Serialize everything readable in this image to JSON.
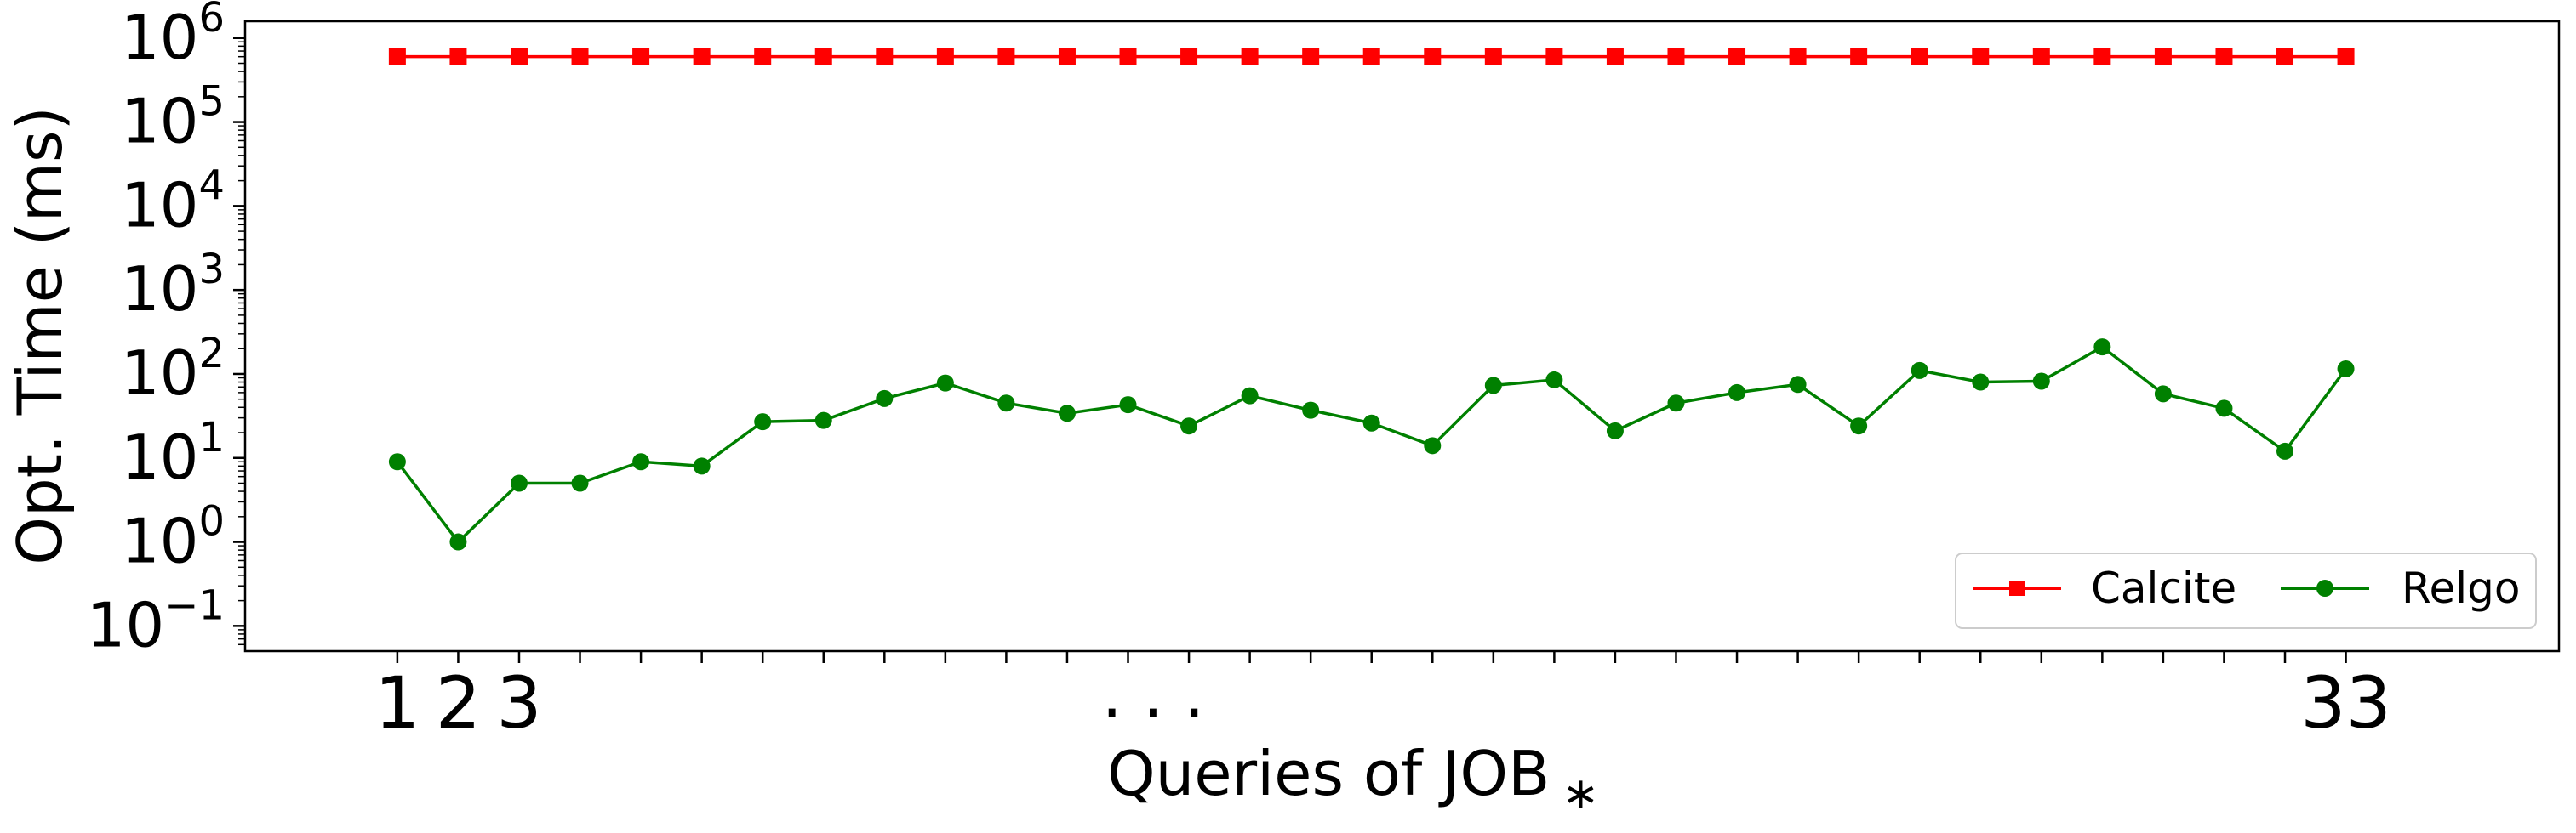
{
  "chart_data": {
    "type": "line",
    "ylabel": "Opt. Time (ms)",
    "xlabel": "Queries of JOB",
    "xlabel_subscript": "∗",
    "yscale": "log",
    "ylim_exponent": [
      -1.3,
      6.2
    ],
    "y_ticks": [
      {
        "base": "10",
        "exp": "−1",
        "value": 0.1
      },
      {
        "base": "10",
        "exp": "0",
        "value": 1
      },
      {
        "base": "10",
        "exp": "1",
        "value": 10
      },
      {
        "base": "10",
        "exp": "2",
        "value": 100
      },
      {
        "base": "10",
        "exp": "3",
        "value": 1000
      },
      {
        "base": "10",
        "exp": "4",
        "value": 10000
      },
      {
        "base": "10",
        "exp": "5",
        "value": 100000
      },
      {
        "base": "10",
        "exp": "6",
        "value": 1000000
      }
    ],
    "x": [
      1,
      2,
      3,
      4,
      5,
      6,
      7,
      8,
      9,
      10,
      11,
      12,
      13,
      14,
      15,
      16,
      17,
      18,
      19,
      20,
      21,
      22,
      23,
      24,
      25,
      26,
      27,
      28,
      29,
      30,
      31,
      32,
      33
    ],
    "xlim": [
      -1.5,
      36.5
    ],
    "x_tick_labels": [
      {
        "x": 1,
        "label": "1"
      },
      {
        "x": 2,
        "label": "2"
      },
      {
        "x": 3,
        "label": "3"
      },
      {
        "x": 33,
        "label": "33"
      }
    ],
    "ellipsis": ". . .",
    "legend_position": "lower-right",
    "grid": false,
    "series": [
      {
        "name": "Calcite",
        "color": "#ff0000",
        "marker": "square",
        "values": [
          600000,
          600000,
          600000,
          600000,
          600000,
          600000,
          600000,
          600000,
          600000,
          600000,
          600000,
          600000,
          600000,
          600000,
          600000,
          600000,
          600000,
          600000,
          600000,
          600000,
          600000,
          600000,
          600000,
          600000,
          600000,
          600000,
          600000,
          600000,
          600000,
          600000,
          600000,
          600000,
          600000
        ]
      },
      {
        "name": "Relgo",
        "color": "#008000",
        "marker": "circle",
        "values": [
          9,
          1,
          5,
          5,
          9,
          8,
          27,
          28,
          51,
          78,
          45,
          34,
          43,
          24,
          55,
          37,
          26,
          14,
          73,
          85,
          21,
          45,
          60,
          75,
          24,
          110,
          80,
          82,
          210,
          58,
          39,
          12,
          115
        ]
      }
    ]
  }
}
